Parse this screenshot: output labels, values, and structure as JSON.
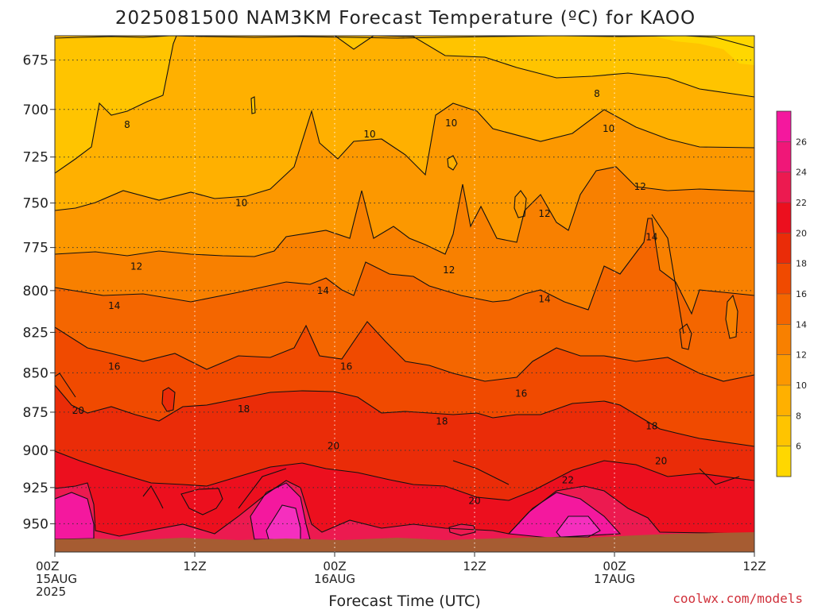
{
  "title": "2025081500 NAM3KM Forecast Temperature (ºC) for KAOO",
  "credit": "coolwx.com/models",
  "chart_data": {
    "type": "heatmap",
    "title": "2025081500 NAM3KM Forecast Temperature (ºC) for KAOO",
    "xlabel": "Forecast Time (UTC)",
    "ylabel": "",
    "x_range_hours": [
      0,
      60
    ],
    "y_range_hpa": [
      663,
      970
    ],
    "y_scale": "log-pressure",
    "yticks": [
      675,
      700,
      725,
      750,
      775,
      800,
      825,
      850,
      875,
      900,
      925,
      950
    ],
    "xticks": [
      {
        "h": 0,
        "lines": [
          "00Z",
          "15AUG",
          "2025"
        ]
      },
      {
        "h": 12,
        "lines": [
          "12Z"
        ]
      },
      {
        "h": 24,
        "lines": [
          "00Z",
          "16AUG"
        ]
      },
      {
        "h": 36,
        "lines": [
          "12Z"
        ]
      },
      {
        "h": 48,
        "lines": [
          "00Z",
          "17AUG"
        ]
      },
      {
        "h": 60,
        "lines": [
          "12Z"
        ]
      }
    ],
    "grid": true,
    "colorbar": {
      "placement": "right",
      "ticks": [
        6,
        8,
        10,
        12,
        14,
        16,
        18,
        20,
        22,
        24,
        26
      ],
      "levels": [
        4,
        6,
        8,
        10,
        12,
        14,
        16,
        18,
        20,
        22,
        24,
        26,
        28
      ],
      "colors": [
        "#ffd700",
        "#ffc400",
        "#ffb000",
        "#fc9800",
        "#f88000",
        "#f46600",
        "#f04a00",
        "#ea2c08",
        "#ec0f1e",
        "#ec1a50",
        "#f01778",
        "#f4189e",
        "#f52fbe"
      ]
    },
    "contour_labels": [
      {
        "h": 6.2,
        "p": 708,
        "v": "8"
      },
      {
        "h": 46.5,
        "p": 692,
        "v": "8"
      },
      {
        "h": 16.0,
        "p": 750,
        "v": "10"
      },
      {
        "h": 27.0,
        "p": 713,
        "v": "10"
      },
      {
        "h": 34.0,
        "p": 707,
        "v": "10"
      },
      {
        "h": 47.5,
        "p": 710,
        "v": "10"
      },
      {
        "h": 7.0,
        "p": 786,
        "v": "12"
      },
      {
        "h": 33.8,
        "p": 788,
        "v": "12"
      },
      {
        "h": 42.0,
        "p": 756,
        "v": "12"
      },
      {
        "h": 50.2,
        "p": 741,
        "v": "12"
      },
      {
        "h": 5.1,
        "p": 809,
        "v": "14"
      },
      {
        "h": 23.0,
        "p": 800,
        "v": "14"
      },
      {
        "h": 42.0,
        "p": 805,
        "v": "14"
      },
      {
        "h": 51.2,
        "p": 769,
        "v": "14"
      },
      {
        "h": 5.1,
        "p": 846,
        "v": "16"
      },
      {
        "h": 25.0,
        "p": 846,
        "v": "16"
      },
      {
        "h": 40.0,
        "p": 863,
        "v": "16"
      },
      {
        "h": 2.0,
        "p": 874,
        "v": "20"
      },
      {
        "h": 16.2,
        "p": 873,
        "v": "18"
      },
      {
        "h": 33.2,
        "p": 881,
        "v": "18"
      },
      {
        "h": 51.2,
        "p": 884,
        "v": "18"
      },
      {
        "h": 23.9,
        "p": 897,
        "v": "20"
      },
      {
        "h": 36.0,
        "p": 934,
        "v": "20"
      },
      {
        "h": 52.0,
        "p": 907,
        "v": "20"
      },
      {
        "h": 44.0,
        "p": 920,
        "v": "22"
      }
    ]
  }
}
